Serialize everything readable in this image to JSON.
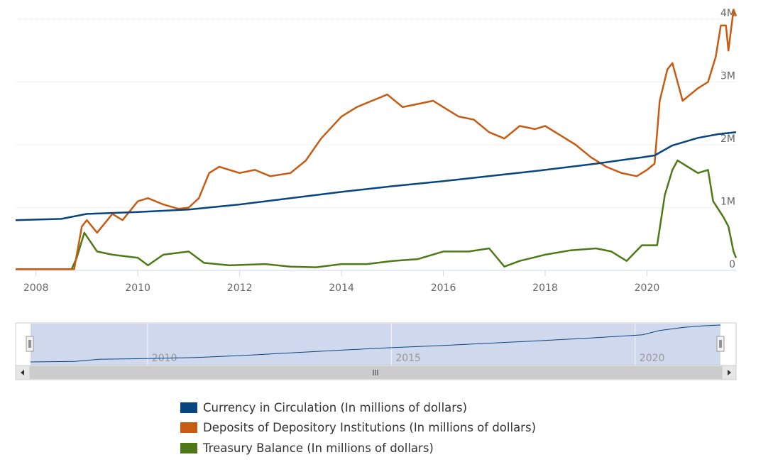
{
  "chart_data": {
    "type": "line",
    "title": "",
    "xlabel": "",
    "ylabel": "",
    "xlim": [
      2007.6,
      2021.75
    ],
    "ylim": [
      0,
      4000000
    ],
    "x_ticks": [
      "2008",
      "2010",
      "2012",
      "2014",
      "2016",
      "2018",
      "2020"
    ],
    "y_ticks": [
      "0",
      "1M",
      "2M",
      "3M",
      "4M"
    ],
    "grid": true,
    "legend_position": "bottom-center",
    "series": [
      {
        "name": "Currency in Circulation (In millions of dollars)",
        "color": "#08457e",
        "points": [
          [
            2007.6,
            800000
          ],
          [
            2008.5,
            820000
          ],
          [
            2009.0,
            900000
          ],
          [
            2010.0,
            930000
          ],
          [
            2011.0,
            970000
          ],
          [
            2012.0,
            1050000
          ],
          [
            2013.0,
            1150000
          ],
          [
            2014.0,
            1250000
          ],
          [
            2015.0,
            1340000
          ],
          [
            2016.0,
            1420000
          ],
          [
            2017.0,
            1510000
          ],
          [
            2018.0,
            1600000
          ],
          [
            2019.0,
            1700000
          ],
          [
            2019.9,
            1800000
          ],
          [
            2020.15,
            1830000
          ],
          [
            2020.5,
            1990000
          ],
          [
            2021.0,
            2110000
          ],
          [
            2021.4,
            2170000
          ],
          [
            2021.75,
            2200000
          ]
        ]
      },
      {
        "name": "Deposits of Depository Institutions (In millions of dollars)",
        "color": "#c75b12",
        "points": [
          [
            2007.6,
            20000
          ],
          [
            2008.6,
            20000
          ],
          [
            2008.75,
            20000
          ],
          [
            2008.9,
            700000
          ],
          [
            2009.0,
            800000
          ],
          [
            2009.2,
            600000
          ],
          [
            2009.5,
            900000
          ],
          [
            2009.7,
            800000
          ],
          [
            2010.0,
            1100000
          ],
          [
            2010.2,
            1150000
          ],
          [
            2010.5,
            1050000
          ],
          [
            2010.8,
            980000
          ],
          [
            2011.0,
            1000000
          ],
          [
            2011.2,
            1150000
          ],
          [
            2011.4,
            1550000
          ],
          [
            2011.6,
            1650000
          ],
          [
            2012.0,
            1550000
          ],
          [
            2012.3,
            1600000
          ],
          [
            2012.6,
            1500000
          ],
          [
            2013.0,
            1550000
          ],
          [
            2013.3,
            1750000
          ],
          [
            2013.6,
            2100000
          ],
          [
            2014.0,
            2450000
          ],
          [
            2014.3,
            2600000
          ],
          [
            2014.6,
            2700000
          ],
          [
            2014.9,
            2800000
          ],
          [
            2015.2,
            2600000
          ],
          [
            2015.5,
            2650000
          ],
          [
            2015.8,
            2700000
          ],
          [
            2016.0,
            2600000
          ],
          [
            2016.3,
            2450000
          ],
          [
            2016.6,
            2400000
          ],
          [
            2016.9,
            2200000
          ],
          [
            2017.2,
            2100000
          ],
          [
            2017.5,
            2300000
          ],
          [
            2017.8,
            2250000
          ],
          [
            2018.0,
            2300000
          ],
          [
            2018.3,
            2150000
          ],
          [
            2018.6,
            2000000
          ],
          [
            2018.9,
            1800000
          ],
          [
            2019.2,
            1650000
          ],
          [
            2019.5,
            1550000
          ],
          [
            2019.8,
            1500000
          ],
          [
            2020.0,
            1600000
          ],
          [
            2020.15,
            1700000
          ],
          [
            2020.25,
            2700000
          ],
          [
            2020.4,
            3200000
          ],
          [
            2020.5,
            3300000
          ],
          [
            2020.7,
            2700000
          ],
          [
            2021.0,
            2900000
          ],
          [
            2021.2,
            3000000
          ],
          [
            2021.35,
            3400000
          ],
          [
            2021.45,
            3900000
          ],
          [
            2021.55,
            3900000
          ],
          [
            2021.6,
            3500000
          ],
          [
            2021.7,
            4150000
          ],
          [
            2021.75,
            4050000
          ]
        ]
      },
      {
        "name": "Treasury Balance (In millions of dollars)",
        "color": "#4d7a16",
        "points": [
          [
            2007.6,
            20000
          ],
          [
            2008.7,
            20000
          ],
          [
            2008.8,
            200000
          ],
          [
            2008.95,
            600000
          ],
          [
            2009.2,
            300000
          ],
          [
            2009.5,
            250000
          ],
          [
            2010.0,
            200000
          ],
          [
            2010.2,
            80000
          ],
          [
            2010.5,
            250000
          ],
          [
            2011.0,
            300000
          ],
          [
            2011.3,
            120000
          ],
          [
            2011.8,
            80000
          ],
          [
            2012.5,
            100000
          ],
          [
            2013.0,
            60000
          ],
          [
            2013.5,
            50000
          ],
          [
            2014.0,
            100000
          ],
          [
            2014.5,
            100000
          ],
          [
            2015.0,
            150000
          ],
          [
            2015.5,
            180000
          ],
          [
            2016.0,
            300000
          ],
          [
            2016.5,
            300000
          ],
          [
            2016.9,
            350000
          ],
          [
            2017.2,
            60000
          ],
          [
            2017.5,
            150000
          ],
          [
            2018.0,
            250000
          ],
          [
            2018.5,
            320000
          ],
          [
            2019.0,
            350000
          ],
          [
            2019.3,
            300000
          ],
          [
            2019.6,
            150000
          ],
          [
            2019.9,
            400000
          ],
          [
            2020.2,
            400000
          ],
          [
            2020.35,
            1200000
          ],
          [
            2020.5,
            1600000
          ],
          [
            2020.6,
            1750000
          ],
          [
            2020.8,
            1650000
          ],
          [
            2021.0,
            1550000
          ],
          [
            2021.2,
            1600000
          ],
          [
            2021.3,
            1100000
          ],
          [
            2021.5,
            850000
          ],
          [
            2021.6,
            700000
          ],
          [
            2021.7,
            300000
          ],
          [
            2021.75,
            200000
          ]
        ]
      }
    ],
    "navigator": {
      "x_labels": [
        "2010",
        "2015",
        "2020"
      ],
      "series_name": "Currency in Circulation (In millions of dollars)"
    }
  }
}
